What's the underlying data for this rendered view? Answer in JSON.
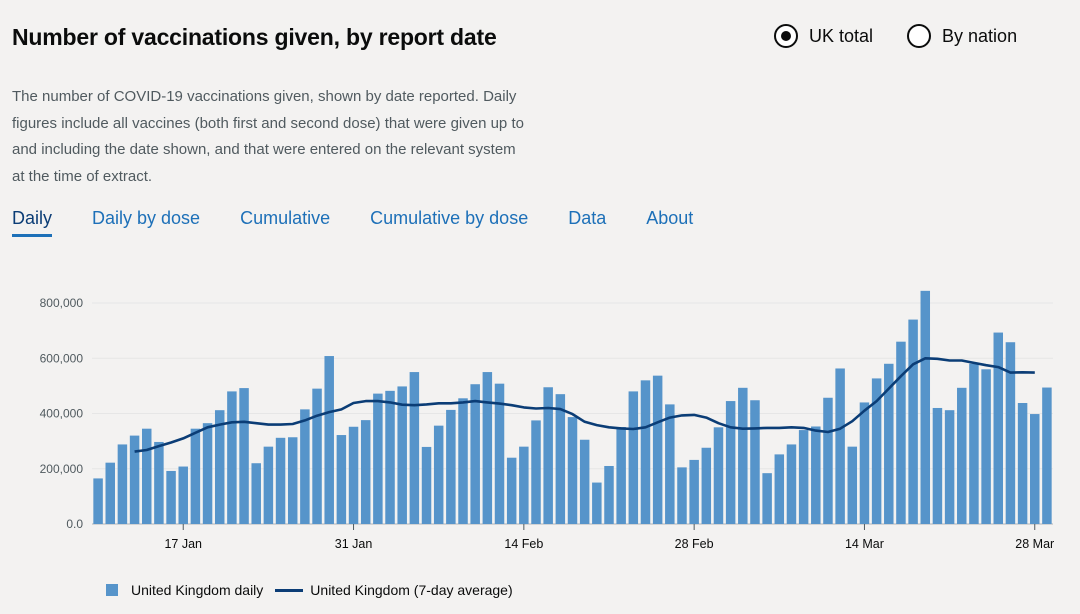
{
  "header": {
    "title": "Number of vaccinations given, by report date"
  },
  "radios": [
    {
      "label": "UK total",
      "checked": true
    },
    {
      "label": "By nation",
      "checked": false
    }
  ],
  "description": "The number of COVID-19 vaccinations given, shown by date reported. Daily figures include all vaccines (both first and second dose) that were given up to and including the date shown, and that were entered on the relevant system at the time of extract.",
  "tabs": [
    {
      "label": "Daily",
      "active": true
    },
    {
      "label": "Daily by dose",
      "active": false
    },
    {
      "label": "Cumulative",
      "active": false
    },
    {
      "label": "Cumulative by dose",
      "active": false
    },
    {
      "label": "Data",
      "active": false
    },
    {
      "label": "About",
      "active": false
    }
  ],
  "colors": {
    "bar": "#5694ca",
    "line": "#0b3d76",
    "grid": "#e6e6e6",
    "axis": "#505a5f"
  },
  "chart_data": {
    "type": "bar",
    "title": "",
    "xlabel": "",
    "ylabel": "",
    "ylim": [
      0,
      800000
    ],
    "yticks": [
      0,
      200000,
      400000,
      600000,
      800000
    ],
    "ytick_labels": [
      "0.0",
      "200,000",
      "400,000",
      "600,000",
      "800,000"
    ],
    "xticks": [
      {
        "label": "17 Jan",
        "index": 7
      },
      {
        "label": "31 Jan",
        "index": 21
      },
      {
        "label": "14 Feb",
        "index": 35
      },
      {
        "label": "28 Feb",
        "index": 49
      },
      {
        "label": "14 Mar",
        "index": 63
      },
      {
        "label": "28 Mar",
        "index": 77
      }
    ],
    "start_date": "10 Jan",
    "series": [
      {
        "name": "United Kingdom daily",
        "kind": "bar",
        "values": [
          165000,
          222000,
          288000,
          320000,
          345000,
          297000,
          192000,
          208000,
          345000,
          365000,
          412000,
          480000,
          492000,
          220000,
          280000,
          312000,
          314000,
          415000,
          490000,
          608000,
          322000,
          352000,
          376000,
          472000,
          482000,
          498000,
          550000,
          279000,
          356000,
          413000,
          455000,
          506000,
          550000,
          508000,
          240000,
          280000,
          375000,
          495000,
          470000,
          387000,
          305000,
          150000,
          210000,
          351000,
          480000,
          520000,
          537000,
          433000,
          205000,
          232000,
          276000,
          350000,
          445000,
          493000,
          448000,
          184000,
          252000,
          288000,
          340000,
          353000,
          457000,
          563000,
          280000,
          440000,
          527000,
          580000,
          660000,
          740000,
          844000,
          420000,
          412000,
          493000,
          580000,
          560000,
          693000,
          658000,
          438000,
          398000,
          494000
        ]
      },
      {
        "name": "United Kingdom (7-day average)",
        "kind": "line",
        "start_index": 3,
        "values": [
          262000,
          268000,
          282000,
          295000,
          310000,
          330000,
          350000,
          360000,
          368000,
          370000,
          365000,
          360000,
          360000,
          362000,
          375000,
          392000,
          405000,
          415000,
          438000,
          445000,
          445000,
          440000,
          432000,
          430000,
          433000,
          437000,
          437000,
          440000,
          445000,
          440000,
          436000,
          430000,
          422000,
          418000,
          420000,
          416000,
          398000,
          370000,
          358000,
          350000,
          346000,
          344000,
          350000,
          368000,
          385000,
          393000,
          395000,
          385000,
          365000,
          350000,
          345000,
          346000,
          348000,
          348000,
          350000,
          348000,
          338000,
          333000,
          345000,
          372000,
          410000,
          445000,
          490000,
          535000,
          578000,
          600000,
          598000,
          592000,
          592000,
          583000,
          575000,
          568000,
          548000,
          549000,
          548000
        ]
      }
    ]
  }
}
